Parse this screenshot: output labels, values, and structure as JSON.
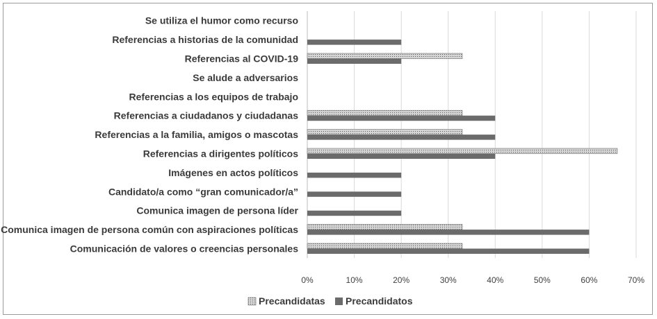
{
  "chart_data": {
    "type": "bar",
    "orientation": "horizontal",
    "title": "",
    "xlabel": "",
    "ylabel": "",
    "xlim": [
      0,
      70
    ],
    "x_ticks": [
      "0%",
      "10%",
      "20%",
      "30%",
      "40%",
      "50%",
      "60%",
      "70%"
    ],
    "grid": "vertical",
    "legend_position": "bottom",
    "categories": [
      "Se utiliza el humor como recurso",
      "Referencias a historias de la comunidad",
      "Referencias al COVID-19",
      "Se alude a adversarios",
      "Referencias a los equipos de trabajo",
      "Referencias a  ciudadanos y ciudadanas",
      "Referencias a la familia, amigos o mascotas",
      "Referencias a dirigentes políticos",
      "Imágenes en actos políticos",
      "Candidato/a como “gran comunicador/a”",
      "Comunica imagen de persona líder",
      "Comunica imagen de persona común con aspiraciones políticas",
      "Comunicación de valores o creencias personales"
    ],
    "series": [
      {
        "name": "Precandidatas",
        "color": "#c8c8c8",
        "pattern": "dotted",
        "values": [
          0,
          0,
          33,
          0,
          0,
          33,
          33,
          66,
          0,
          0,
          0,
          33,
          33
        ]
      },
      {
        "name": "Precandidatos",
        "color": "#6b6b6b",
        "pattern": "solid",
        "values": [
          0,
          20,
          20,
          0,
          0,
          40,
          40,
          40,
          20,
          20,
          20,
          60,
          60
        ]
      }
    ]
  }
}
